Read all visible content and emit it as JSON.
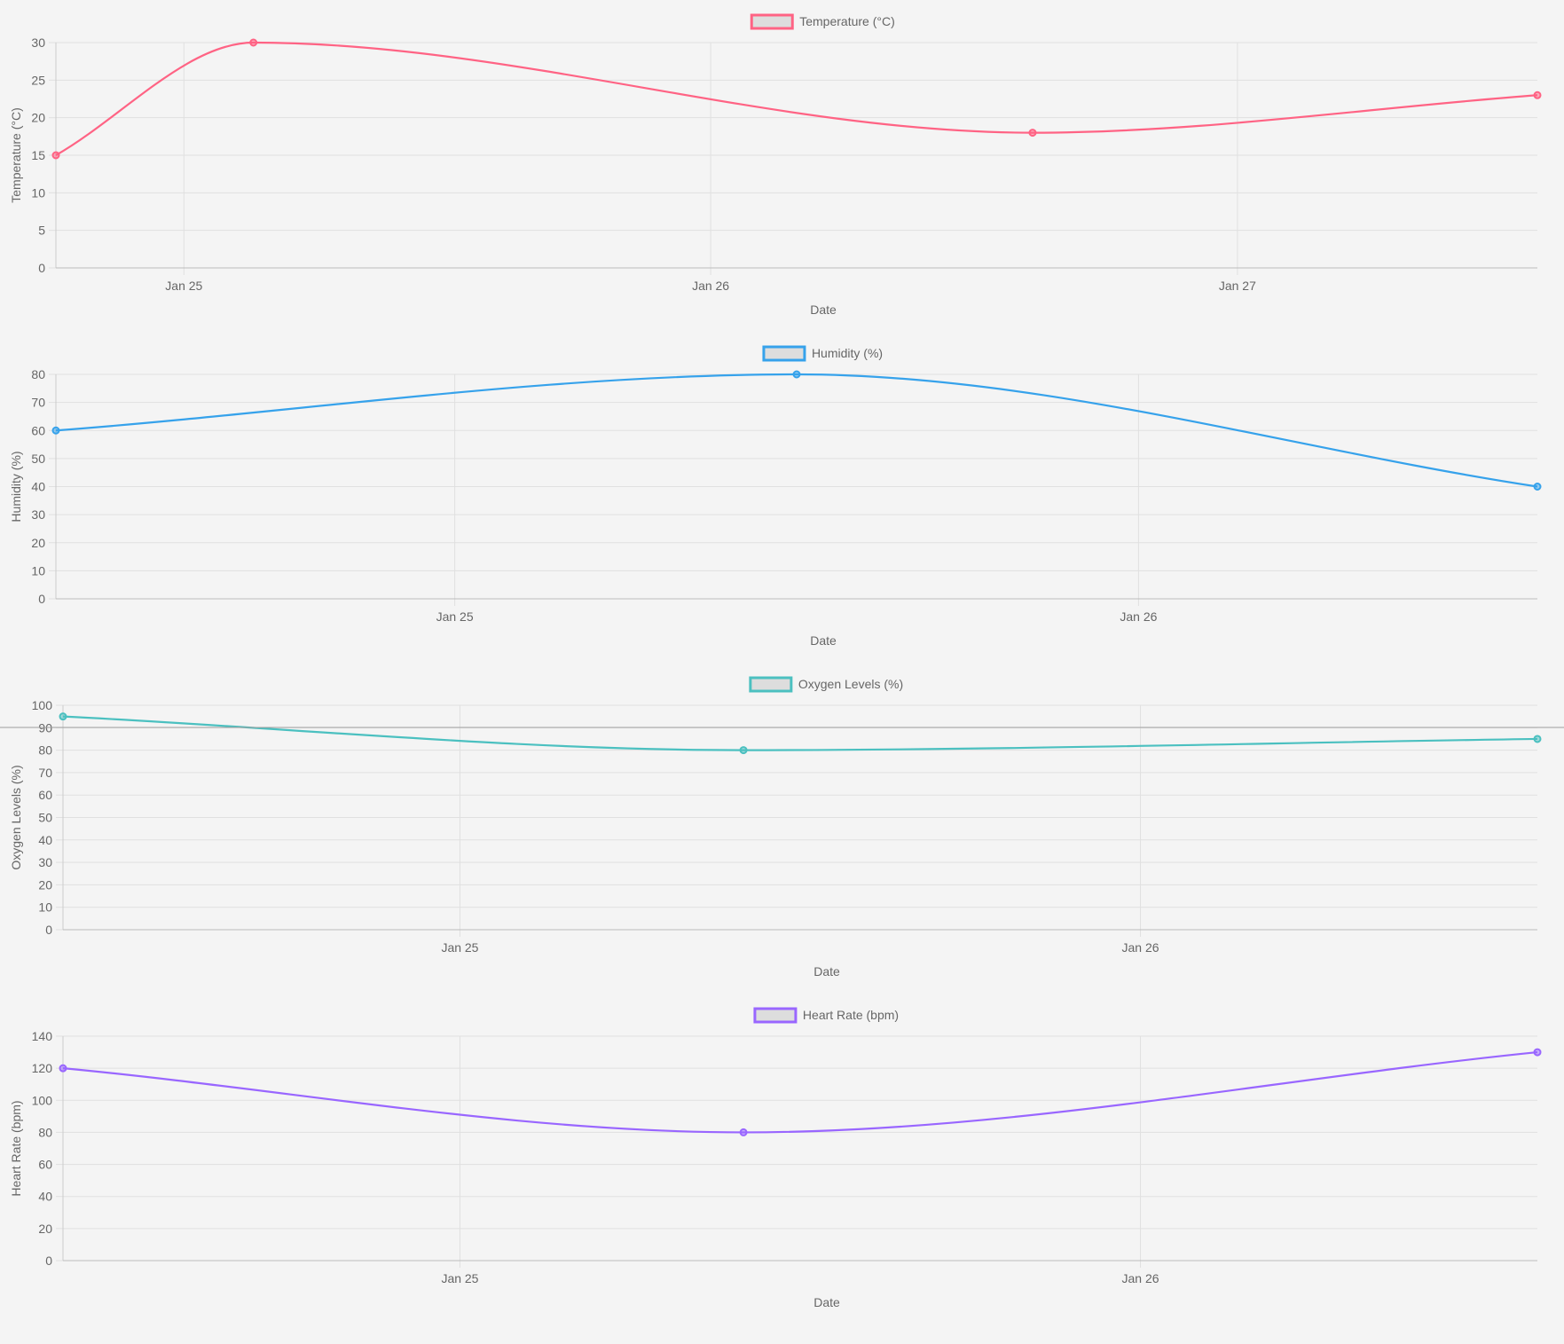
{
  "chart_data": [
    {
      "type": "line",
      "legend_placement": "top-center",
      "grid": true,
      "xlabel": "Date",
      "ylabel": "Temperature (°C)",
      "ylim": [
        0,
        30
      ],
      "yticks": [
        0,
        5,
        10,
        15,
        20,
        25,
        30
      ],
      "xlim": [
        "2024-01-24 18:10",
        "2024-01-27 13:40"
      ],
      "xticks": [
        {
          "value": "2024-01-25 00:00",
          "label": "Jan 25"
        },
        {
          "value": "2024-01-26 00:00",
          "label": "Jan 26"
        },
        {
          "value": "2024-01-27 00:00",
          "label": "Jan 27"
        }
      ],
      "series": [
        {
          "name": "Temperature (°C)",
          "color": "#ff6384",
          "points": [
            {
              "x": "2024-01-24 18:10",
              "y": 15
            },
            {
              "x": "2024-01-25 03:10",
              "y": 30
            },
            {
              "x": "2024-01-26 14:40",
              "y": 18
            },
            {
              "x": "2024-01-27 13:40",
              "y": 23
            }
          ]
        }
      ]
    },
    {
      "type": "line",
      "legend_placement": "top-center",
      "grid": true,
      "xlabel": "Date",
      "ylabel": "Humidity (%)",
      "ylim": [
        0,
        80
      ],
      "yticks": [
        0,
        10,
        20,
        30,
        40,
        50,
        60,
        70,
        80
      ],
      "xlim": [
        "2024-01-24 10:00",
        "2024-01-26 14:00"
      ],
      "xticks": [
        {
          "value": "2024-01-25 00:00",
          "label": "Jan 25"
        },
        {
          "value": "2024-01-26 00:00",
          "label": "Jan 26"
        }
      ],
      "series": [
        {
          "name": "Humidity (%)",
          "color": "#36a2eb",
          "points": [
            {
              "x": "2024-01-24 10:00",
              "y": 60
            },
            {
              "x": "2024-01-25 12:00",
              "y": 80
            },
            {
              "x": "2024-01-26 14:00",
              "y": 40
            }
          ]
        }
      ]
    },
    {
      "type": "line",
      "legend_placement": "top-center",
      "grid": true,
      "xlabel": "Date",
      "ylabel": "Oxygen Levels (%)",
      "ylim": [
        0,
        100
      ],
      "yticks": [
        0,
        10,
        20,
        30,
        40,
        50,
        60,
        70,
        80,
        90,
        100
      ],
      "xlim": [
        "2024-01-24 10:00",
        "2024-01-26 14:00"
      ],
      "xticks": [
        {
          "value": "2024-01-25 00:00",
          "label": "Jan 25"
        },
        {
          "value": "2024-01-26 00:00",
          "label": "Jan 26"
        }
      ],
      "series": [
        {
          "name": "Oxygen Levels (%)",
          "color": "#4bc0c0",
          "points": [
            {
              "x": "2024-01-24 10:00",
              "y": 95
            },
            {
              "x": "2024-01-25 10:00",
              "y": 80
            },
            {
              "x": "2024-01-26 14:00",
              "y": 85
            }
          ]
        }
      ]
    },
    {
      "type": "line",
      "legend_placement": "top-center",
      "grid": true,
      "xlabel": "Date",
      "ylabel": "Heart Rate (bpm)",
      "ylim": [
        0,
        140
      ],
      "yticks": [
        0,
        20,
        40,
        60,
        80,
        100,
        120,
        140
      ],
      "xlim": [
        "2024-01-24 10:00",
        "2024-01-26 14:00"
      ],
      "xticks": [
        {
          "value": "2024-01-25 00:00",
          "label": "Jan 25"
        },
        {
          "value": "2024-01-26 00:00",
          "label": "Jan 26"
        }
      ],
      "series": [
        {
          "name": "Heart Rate (bpm)",
          "color": "#9966ff",
          "points": [
            {
              "x": "2024-01-24 10:00",
              "y": 120
            },
            {
              "x": "2024-01-25 10:00",
              "y": 80
            },
            {
              "x": "2024-01-26 14:00",
              "y": 130
            }
          ]
        }
      ]
    }
  ]
}
